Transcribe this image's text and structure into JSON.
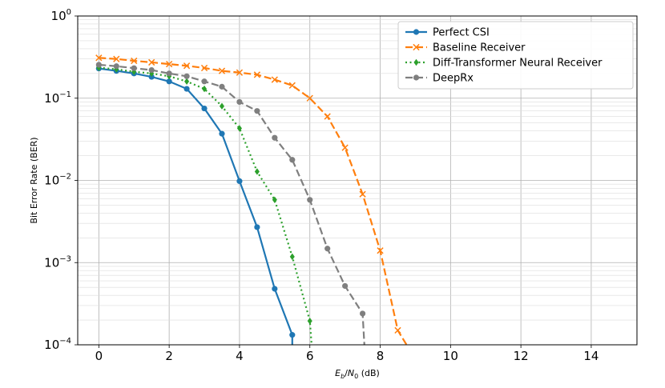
{
  "chart_data": {
    "type": "line",
    "xlabel": "E_b/N_0 (dB)",
    "ylabel": "Bit Error Rate (BER)",
    "x_scale": "linear",
    "y_scale": "log",
    "xlim": [
      -0.6,
      15.3
    ],
    "ylim": [
      0.0001,
      1
    ],
    "x_ticks": [
      0,
      2,
      4,
      6,
      8,
      10,
      12,
      14
    ],
    "x_tick_labels": [
      "0",
      "2",
      "4",
      "6",
      "8",
      "10",
      "12",
      "14"
    ],
    "y_ticks": [
      0.0001,
      0.001,
      0.01,
      0.1,
      1
    ],
    "y_tick_labels": [
      {
        "base": "10",
        "exp": "−4"
      },
      {
        "base": "10",
        "exp": "−3"
      },
      {
        "base": "10",
        "exp": "−2"
      },
      {
        "base": "10",
        "exp": "−1"
      },
      {
        "base": "10",
        "exp": "0"
      }
    ],
    "grid": true,
    "legend_position": "top-right",
    "series": [
      {
        "name": "Perfect CSI",
        "color": "#1f77b4",
        "line_style": "solid",
        "marker": "circle",
        "x": [
          0,
          0.5,
          1,
          1.5,
          2,
          2.5,
          3,
          3.5,
          4,
          4.5,
          5,
          5.5,
          5.5
        ],
        "y": [
          0.23,
          0.215,
          0.2,
          0.182,
          0.16,
          0.13,
          0.075,
          0.037,
          0.0098,
          0.0027,
          0.00048,
          0.000132,
          0.0001
        ]
      },
      {
        "name": "Baseline Receiver",
        "color": "#ff7f0e",
        "line_style": "dashed",
        "marker": "x",
        "x": [
          0,
          0.5,
          1,
          1.5,
          2,
          2.5,
          3,
          3.5,
          4,
          4.5,
          5,
          5.5,
          6,
          6.5,
          7,
          7.5,
          8,
          8.5,
          8.75
        ],
        "y": [
          0.31,
          0.3,
          0.285,
          0.273,
          0.26,
          0.248,
          0.233,
          0.215,
          0.205,
          0.193,
          0.168,
          0.143,
          0.1,
          0.06,
          0.025,
          0.0068,
          0.0014,
          0.00015,
          0.0001
        ]
      },
      {
        "name": "Diff-Transformer Neural Receiver",
        "color": "#2ca02c",
        "line_style": "dotted",
        "marker": "diamond",
        "x": [
          0,
          0.5,
          1,
          1.5,
          2,
          2.5,
          3,
          3.5,
          4,
          4.5,
          5,
          5.5,
          6,
          6.05
        ],
        "y": [
          0.235,
          0.225,
          0.21,
          0.2,
          0.185,
          0.16,
          0.13,
          0.08,
          0.043,
          0.0128,
          0.0058,
          0.00118,
          0.000195,
          0.0001
        ]
      },
      {
        "name": "DeepRx",
        "color": "#7f7f7f",
        "line_style": "dashed",
        "marker": "circle",
        "x": [
          0,
          0.5,
          1,
          1.5,
          2,
          2.5,
          3,
          3.5,
          4,
          4.5,
          5,
          5.5,
          6,
          6.5,
          7,
          7.5,
          7.55
        ],
        "y": [
          0.255,
          0.245,
          0.232,
          0.22,
          0.2,
          0.185,
          0.16,
          0.138,
          0.09,
          0.07,
          0.033,
          0.0178,
          0.0058,
          0.00148,
          0.00052,
          0.00024,
          0.0001
        ]
      }
    ]
  }
}
